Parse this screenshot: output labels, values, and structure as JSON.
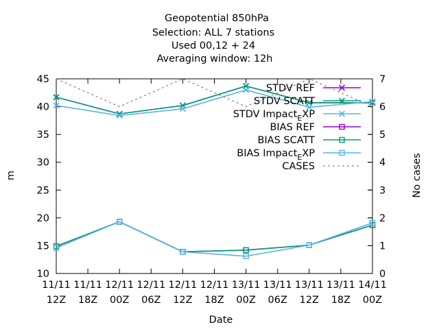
{
  "title_lines": [
    "Geopotential 850hPa",
    "Selection: ALL       7 stations",
    "Used  00,12  + 24",
    "Averaging window: 12h"
  ],
  "chart_data": {
    "type": "line",
    "title": "Geopotential 850hPa",
    "xlabel": "Date",
    "ylabel": "m",
    "y2label": "No cases",
    "ylim": [
      10,
      45
    ],
    "y2lim": [
      0,
      7
    ],
    "yticks": [
      10,
      15,
      20,
      25,
      30,
      35,
      40,
      45
    ],
    "y2ticks": [
      0,
      1,
      2,
      3,
      4,
      5,
      6,
      7
    ],
    "x_categories": [
      [
        "11/11",
        "12Z"
      ],
      [
        "11/11",
        "18Z"
      ],
      [
        "12/11",
        "00Z"
      ],
      [
        "12/11",
        "06Z"
      ],
      [
        "12/11",
        "12Z"
      ],
      [
        "12/11",
        "18Z"
      ],
      [
        "13/11",
        "00Z"
      ],
      [
        "13/11",
        "06Z"
      ],
      [
        "13/11",
        "12Z"
      ],
      [
        "13/11",
        "18Z"
      ],
      [
        "14/11",
        "00Z"
      ]
    ],
    "legend_position": "top-right",
    "grid": false,
    "series": [
      {
        "name": "STDV REF",
        "color": "#9400d3",
        "marker": "x",
        "dashed": false,
        "axis": "y1",
        "x": [
          0,
          2,
          4,
          6,
          8,
          10
        ],
        "values": [
          41.7,
          38.7,
          40.2,
          43.7,
          40.7,
          40.7
        ]
      },
      {
        "name": "STDV SCATT",
        "color": "#009e73",
        "marker": "x",
        "dashed": false,
        "axis": "y1",
        "x": [
          0,
          2,
          4,
          6,
          8,
          10
        ],
        "values": [
          41.7,
          38.7,
          40.2,
          43.7,
          40.7,
          40.7
        ]
      },
      {
        "name": "STDV Impact_EXP",
        "color": "#56b4e9",
        "marker": "x",
        "dashed": false,
        "axis": "y1",
        "x": [
          0,
          2,
          4,
          6,
          8,
          10
        ],
        "values": [
          40.2,
          38.4,
          39.6,
          43.0,
          39.9,
          40.9
        ]
      },
      {
        "name": "BIAS REF",
        "color": "#9400d3",
        "marker": "square",
        "dashed": false,
        "axis": "y1",
        "x": [
          0,
          2,
          4,
          6,
          8,
          10
        ],
        "values": [
          14.9,
          19.3,
          13.9,
          14.2,
          15.1,
          18.7
        ]
      },
      {
        "name": "BIAS SCATT",
        "color": "#009e73",
        "marker": "square",
        "dashed": false,
        "axis": "y1",
        "x": [
          0,
          2,
          4,
          6,
          8,
          10
        ],
        "values": [
          14.9,
          19.3,
          13.9,
          14.2,
          15.1,
          18.7
        ]
      },
      {
        "name": "BIAS Impact_EXP",
        "color": "#56b4e9",
        "marker": "square",
        "dashed": false,
        "axis": "y1",
        "x": [
          0,
          2,
          4,
          6,
          8,
          10
        ],
        "values": [
          14.6,
          19.3,
          13.9,
          13.1,
          15.1,
          19.1
        ]
      },
      {
        "name": "CASES",
        "color": "#888888",
        "marker": "none",
        "dashed": true,
        "axis": "y2",
        "x": [
          0,
          2,
          4,
          6,
          8,
          10
        ],
        "values": [
          7,
          6,
          7,
          6,
          7,
          6
        ]
      }
    ]
  }
}
